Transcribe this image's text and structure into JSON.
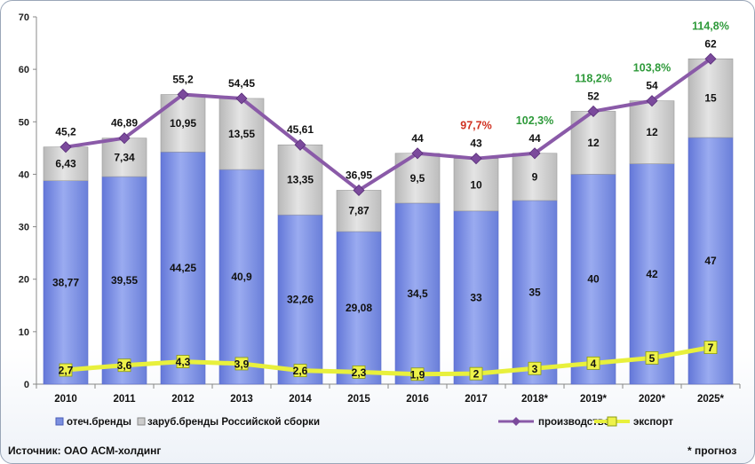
{
  "chart_data": {
    "type": "bar",
    "categories": [
      "2010",
      "2011",
      "2012",
      "2013",
      "2014",
      "2015",
      "2016",
      "2017",
      "2018*",
      "2019*",
      "2020*",
      "2025*"
    ],
    "ylim": [
      0,
      70
    ],
    "yticks": [
      0,
      10,
      20,
      30,
      40,
      50,
      60,
      70
    ],
    "series": [
      {
        "name": "отеч.бренды",
        "kind": "stacked-bar",
        "color": "#7b8fe0",
        "values": [
          38.77,
          39.55,
          44.25,
          40.9,
          32.26,
          29.08,
          34.5,
          33,
          35,
          40,
          42,
          47
        ],
        "labels": [
          "38,77",
          "39,55",
          "44,25",
          "40,9",
          "32,26",
          "29,08",
          "34,5",
          "33",
          "35",
          "40",
          "42",
          "47"
        ]
      },
      {
        "name": "заруб.бренды Российской сборки",
        "kind": "stacked-bar",
        "color": "#cccccc",
        "values": [
          6.43,
          7.34,
          10.95,
          13.55,
          13.35,
          7.87,
          9.5,
          10,
          9,
          12,
          12,
          15
        ],
        "labels": [
          "6,43",
          "7,34",
          "10,95",
          "13,55",
          "13,35",
          "7,87",
          "9,5",
          "10",
          "9",
          "12",
          "12",
          "15"
        ]
      },
      {
        "name": "производство",
        "kind": "line",
        "color": "#8a5aa8",
        "values": [
          45.2,
          46.89,
          55.2,
          54.45,
          45.61,
          36.95,
          44,
          43,
          44,
          52,
          54,
          62
        ],
        "labels": [
          "45,2",
          "46,89",
          "55,2",
          "54,45",
          "45,61",
          "36,95",
          "44",
          "43",
          "44",
          "52",
          "54",
          "62"
        ]
      },
      {
        "name": "экспорт",
        "kind": "line",
        "color": "#e6f03a",
        "values": [
          2.7,
          3.6,
          4.3,
          3.9,
          2.6,
          2.3,
          1.9,
          2,
          3,
          4,
          5,
          7
        ],
        "labels": [
          "2,7",
          "3,6",
          "4,3",
          "3,9",
          "2,6",
          "2,3",
          "1,9",
          "2",
          "3",
          "4",
          "5",
          "7"
        ]
      }
    ],
    "annotations": [
      {
        "index": 7,
        "text": "97,7%",
        "color": "#d03020"
      },
      {
        "index": 8,
        "text": "102,3%",
        "color": "#2e9a3a"
      },
      {
        "index": 9,
        "text": "118,2%",
        "color": "#2e9a3a"
      },
      {
        "index": 10,
        "text": "103,8%",
        "color": "#2e9a3a"
      },
      {
        "index": 11,
        "text": "114,8%",
        "color": "#2e9a3a"
      }
    ],
    "legend_placement": "bottom",
    "grid": false
  },
  "footer": {
    "source": "Источник: ОАО АСМ-холдинг",
    "note": "* прогноз"
  }
}
